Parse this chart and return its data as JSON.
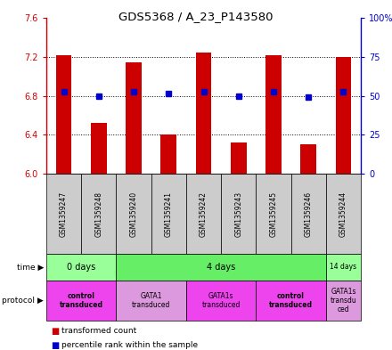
{
  "title": "GDS5368 / A_23_P143580",
  "samples": [
    "GSM1359247",
    "GSM1359248",
    "GSM1359240",
    "GSM1359241",
    "GSM1359242",
    "GSM1359243",
    "GSM1359245",
    "GSM1359246",
    "GSM1359244"
  ],
  "bar_values": [
    7.22,
    6.52,
    7.14,
    6.4,
    7.24,
    6.32,
    7.22,
    6.3,
    7.2
  ],
  "bar_base": 6.0,
  "blue_values": [
    6.84,
    6.8,
    6.84,
    6.82,
    6.84,
    6.8,
    6.84,
    6.79,
    6.84
  ],
  "ylim": [
    6.0,
    7.6
  ],
  "y2lim": [
    0,
    100
  ],
  "yticks": [
    6.0,
    6.4,
    6.8,
    7.2,
    7.6
  ],
  "y2ticks": [
    0,
    25,
    50,
    75,
    100
  ],
  "bar_color": "#cc0000",
  "blue_color": "#0000cc",
  "time_groups": [
    {
      "label": "0 days",
      "start": 0,
      "end": 2,
      "color": "#99ff99"
    },
    {
      "label": "4 days",
      "start": 2,
      "end": 8,
      "color": "#66ee66"
    },
    {
      "label": "14 days",
      "start": 8,
      "end": 9,
      "color": "#99ff99"
    }
  ],
  "protocol_groups": [
    {
      "label": "control\ntransduced",
      "start": 0,
      "end": 2,
      "color": "#ee44ee",
      "bold": true
    },
    {
      "label": "GATA1\ntransduced",
      "start": 2,
      "end": 4,
      "color": "#dd99dd",
      "bold": false
    },
    {
      "label": "GATA1s\ntransduced",
      "start": 4,
      "end": 6,
      "color": "#ee44ee",
      "bold": false
    },
    {
      "label": "control\ntransduced",
      "start": 6,
      "end": 8,
      "color": "#ee44ee",
      "bold": true
    },
    {
      "label": "GATA1s\ntransdu\nced",
      "start": 8,
      "end": 9,
      "color": "#dd99dd",
      "bold": false
    }
  ],
  "sample_box_color": "#cccccc",
  "legend_red_label": "transformed count",
  "legend_blue_label": "percentile rank within the sample"
}
